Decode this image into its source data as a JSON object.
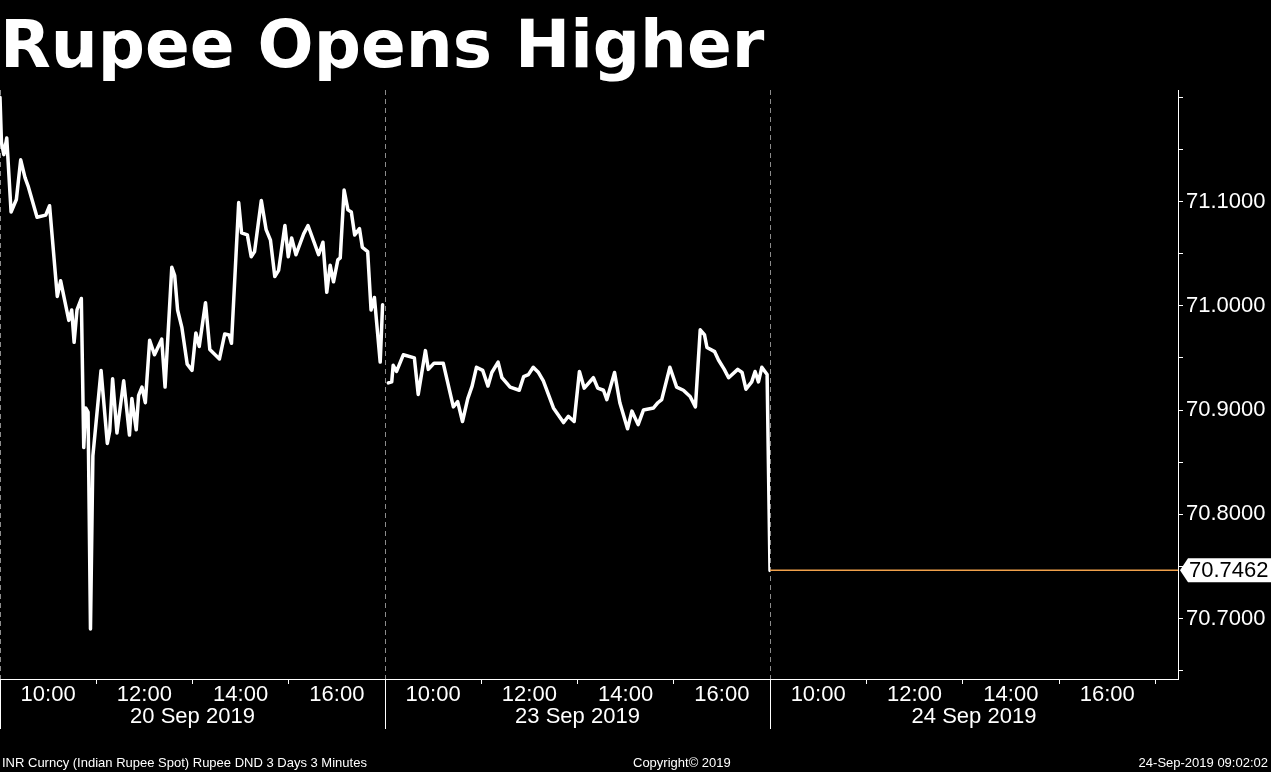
{
  "chart_data": [
    {
      "type": "line",
      "title": "Rupee Opens Higher",
      "xlabel": "20 Sep 2019",
      "annotations": [
        "INR Curncy (Indian Rupee Spot) Rupee DND 3 Days 3 Minutes"
      ],
      "xlim": [
        9,
        17
      ],
      "xticks": [
        {
          "value": 10,
          "label": "10:00"
        },
        {
          "value": 11,
          "label": null
        },
        {
          "value": 12,
          "label": "12:00"
        },
        {
          "value": 13,
          "label": null
        },
        {
          "value": 14,
          "label": "14:00"
        },
        {
          "value": 15,
          "label": null
        },
        {
          "value": 16,
          "label": "16:00"
        }
      ],
      "ylim": [
        70.642,
        71.207
      ],
      "tick_labels": "x",
      "series": [
        {
          "color": "#ffffff",
          "x": [
            9,
            9.03,
            9.08,
            9.14,
            9.23,
            9.34,
            9.43,
            9.52,
            9.59,
            9.77,
            9.95,
            10.03,
            10.19,
            10.26,
            10.43,
            10.49,
            10.54,
            10.6,
            10.69,
            10.74,
            10.78,
            10.83,
            10.88,
            10.93,
            11.1,
            11.23,
            11.28,
            11.34,
            11.43,
            11.57,
            11.69,
            11.74,
            11.83,
            11.88,
            11.95,
            12.02,
            12.11,
            12.21,
            12.36,
            12.43,
            12.57,
            12.63,
            12.69,
            12.78,
            12.89,
            12.99,
            13.07,
            13.14,
            13.27,
            13.36,
            13.56,
            13.67,
            13.76,
            13.81,
            13.96,
            14.02,
            14.14,
            14.22,
            14.29,
            14.43,
            14.53,
            14.62,
            14.71,
            14.79,
            14.92,
            14.99,
            15.06,
            15.15,
            15.31,
            15.4,
            15.62,
            15.71,
            15.79,
            15.86,
            15.93,
            16.02,
            16.07,
            16.15,
            16.23,
            16.3,
            16.37,
            16.47,
            16.53,
            16.64,
            16.71,
            16.78,
            16.9,
            16.95
          ],
          "values": [
            71.2,
            71.157,
            71.145,
            71.161,
            71.09,
            71.102,
            71.14,
            71.123,
            71.114,
            71.085,
            71.087,
            71.096,
            71.009,
            71.024,
            70.986,
            70.996,
            70.965,
            70.996,
            71.007,
            70.864,
            70.902,
            70.898,
            70.69,
            70.856,
            70.938,
            70.868,
            70.88,
            70.93,
            70.878,
            70.928,
            70.876,
            70.911,
            70.881,
            70.914,
            70.922,
            70.907,
            70.967,
            70.953,
            70.968,
            70.922,
            71.037,
            71.029,
            70.996,
            70.979,
            70.944,
            70.938,
            70.974,
            70.961,
            71.003,
            70.958,
            70.949,
            70.973,
            70.972,
            70.964,
            71.099,
            71.07,
            71.068,
            71.047,
            71.052,
            71.101,
            71.073,
            71.063,
            71.028,
            71.034,
            71.077,
            71.047,
            71.065,
            71.049,
            71.069,
            71.077,
            71.049,
            71.061,
            71.013,
            71.039,
            71.023,
            71.044,
            71.046,
            71.111,
            71.092,
            71.09,
            71.068,
            71.074,
            71.056,
            71.052,
            70.996,
            71.008,
            70.946,
            71.001
          ]
        }
      ],
      "ref_lines": [
        {
          "axis": "x",
          "value": 9,
          "color": "#8c8c8c",
          "line_style": "dashed"
        }
      ]
    },
    {
      "type": "line",
      "xlabel": "23 Sep 2019",
      "annotations": [
        "Copyright© 2019"
      ],
      "xlim": [
        9,
        17
      ],
      "xticks": [
        {
          "value": 10,
          "label": "10:00"
        },
        {
          "value": 11,
          "label": null
        },
        {
          "value": 12,
          "label": "12:00"
        },
        {
          "value": 13,
          "label": null
        },
        {
          "value": 14,
          "label": "14:00"
        },
        {
          "value": 15,
          "label": null
        },
        {
          "value": 16,
          "label": "16:00"
        }
      ],
      "ylim": [
        70.642,
        71.207
      ],
      "tick_labels": "x",
      "series": [
        {
          "color": "#ffffff",
          "x": [
            9.07,
            9.14,
            9.17,
            9.24,
            9.38,
            9.61,
            9.69,
            9.84,
            9.9,
            10.02,
            10.21,
            10.42,
            10.51,
            10.61,
            10.72,
            10.81,
            10.9,
            11.03,
            11.14,
            11.22,
            11.35,
            11.43,
            11.6,
            11.79,
            11.88,
            11.98,
            12.08,
            12.19,
            12.29,
            12.5,
            12.59,
            12.71,
            12.81,
            12.93,
            13.04,
            13.14,
            13.33,
            13.42,
            13.54,
            13.61,
            13.77,
            13.88,
            14.04,
            14.13,
            14.26,
            14.37,
            14.58,
            14.67,
            14.75,
            14.92,
            15.06,
            15.2,
            15.34,
            15.45,
            15.55,
            15.64,
            15.69,
            15.85,
            15.93,
            16.05,
            16.14,
            16.33,
            16.42,
            16.5,
            16.62,
            16.69,
            16.76,
            16.83,
            16.94,
            17
          ],
          "values": [
            70.926,
            70.927,
            70.943,
            70.937,
            70.953,
            70.95,
            70.915,
            70.957,
            70.939,
            70.945,
            70.945,
            70.903,
            70.908,
            70.889,
            70.911,
            70.923,
            70.941,
            70.938,
            70.923,
            70.936,
            70.946,
            70.931,
            70.922,
            70.919,
            70.932,
            70.934,
            70.941,
            70.936,
            70.928,
            70.902,
            70.896,
            70.888,
            70.894,
            70.889,
            70.937,
            70.921,
            70.931,
            70.921,
            70.919,
            70.91,
            70.936,
            70.907,
            70.882,
            70.899,
            70.886,
            70.9,
            70.902,
            70.907,
            70.91,
            70.941,
            70.922,
            70.919,
            70.913,
            70.903,
            70.977,
            70.972,
            70.96,
            70.956,
            70.948,
            70.939,
            70.931,
            70.939,
            70.936,
            70.92,
            70.927,
            70.937,
            70.927,
            70.941,
            70.934,
            70.746
          ]
        }
      ],
      "ref_lines": [
        {
          "axis": "x",
          "value": 9,
          "color": "#8c8c8c",
          "line_style": "dashed"
        }
      ]
    },
    {
      "type": "line",
      "xlabel": "24 Sep 2019",
      "annotations": [
        "24-Sep-2019 09:02:02"
      ],
      "xlim": [
        9,
        17.47
      ],
      "xticks": [
        {
          "value": 10,
          "label": "10:00"
        },
        {
          "value": 11,
          "label": null
        },
        {
          "value": 12,
          "label": "12:00"
        },
        {
          "value": 13,
          "label": null
        },
        {
          "value": 14,
          "label": "14:00"
        },
        {
          "value": 15,
          "label": null
        },
        {
          "value": 16,
          "label": "16:00"
        },
        {
          "value": 17,
          "label": null
        }
      ],
      "ylim": [
        70.642,
        71.207
      ],
      "yticks": [
        {
          "value": 70.65,
          "label": null
        },
        {
          "value": 70.7,
          "label": "70.7000"
        },
        {
          "value": 70.75,
          "label": null
        },
        {
          "value": 70.8,
          "label": "70.8000"
        },
        {
          "value": 70.85,
          "label": null
        },
        {
          "value": 70.9,
          "label": "70.9000"
        },
        {
          "value": 70.95,
          "label": null
        },
        {
          "value": 71.0,
          "label": "71.0000"
        },
        {
          "value": 71.05,
          "label": null
        },
        {
          "value": 71.1,
          "label": "71.1000"
        },
        {
          "value": 71.15,
          "label": null
        },
        {
          "value": 71.2,
          "label": null
        }
      ],
      "series": [
        {
          "color": "#f0a04b",
          "x": [
            9,
            17.47
          ],
          "values": [
            70.7462,
            70.7462
          ],
          "value_labels": [
            null,
            "70.7462"
          ]
        }
      ],
      "ref_lines": [
        {
          "axis": "x",
          "value": 9,
          "color": "#8c8c8c",
          "line_style": "dashed"
        }
      ]
    }
  ]
}
